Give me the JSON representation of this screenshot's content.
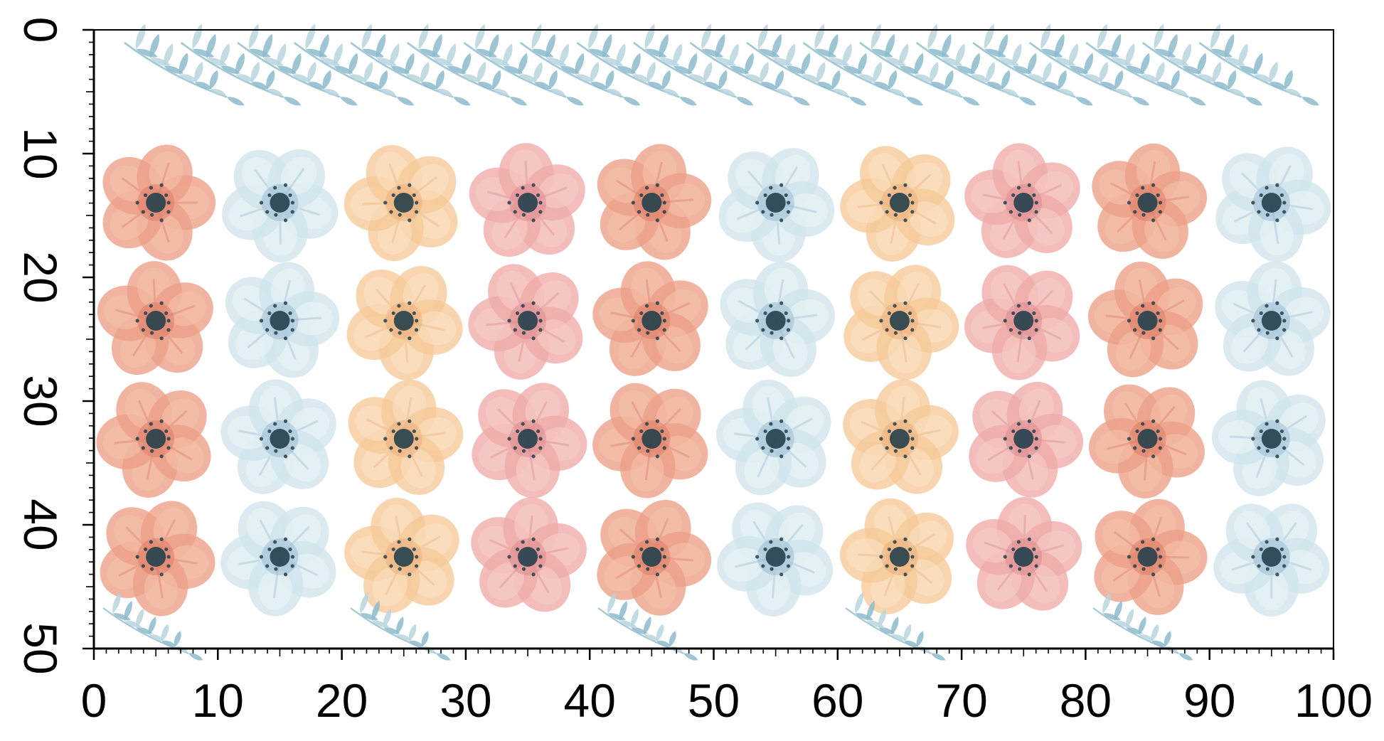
{
  "ruler": {
    "x_ticks": [
      0,
      10,
      20,
      30,
      40,
      50,
      60,
      70,
      80,
      90,
      100
    ],
    "y_ticks": [
      0,
      10,
      20,
      30,
      40,
      50
    ],
    "x_labels": [
      "0",
      "10",
      "20",
      "30",
      "40",
      "50",
      "60",
      "70",
      "80",
      "90",
      "100"
    ],
    "y_labels": [
      "0",
      "10",
      "20",
      "30",
      "40",
      "50"
    ],
    "x_range": [
      0,
      100
    ],
    "y_range": [
      0,
      50
    ]
  },
  "pattern": {
    "flower_rows": 4,
    "flower_columns": 10,
    "flower_color_sequence": [
      "coral",
      "blue",
      "peach",
      "pink",
      "coral",
      "blue",
      "peach",
      "pink",
      "coral",
      "blue"
    ],
    "colors": {
      "coral": {
        "petal": "#ec9f86",
        "edge": "#d9745e",
        "light": "#f6c2ad"
      },
      "blue": {
        "petal": "#cfe4ec",
        "edge": "#8fb2cf",
        "light": "#ecf5f7"
      },
      "peach": {
        "petal": "#f6c999",
        "edge": "#e9a873",
        "light": "#fbe3c6"
      },
      "pink": {
        "petal": "#eeaaa8",
        "edge": "#d98288",
        "light": "#f7cfcc"
      },
      "center": "#23404c",
      "leaf": "#8dbbcc",
      "leaf_light": "#b8d5de"
    },
    "top_sprig_count": 20,
    "bottom_sprig_count": 5
  }
}
